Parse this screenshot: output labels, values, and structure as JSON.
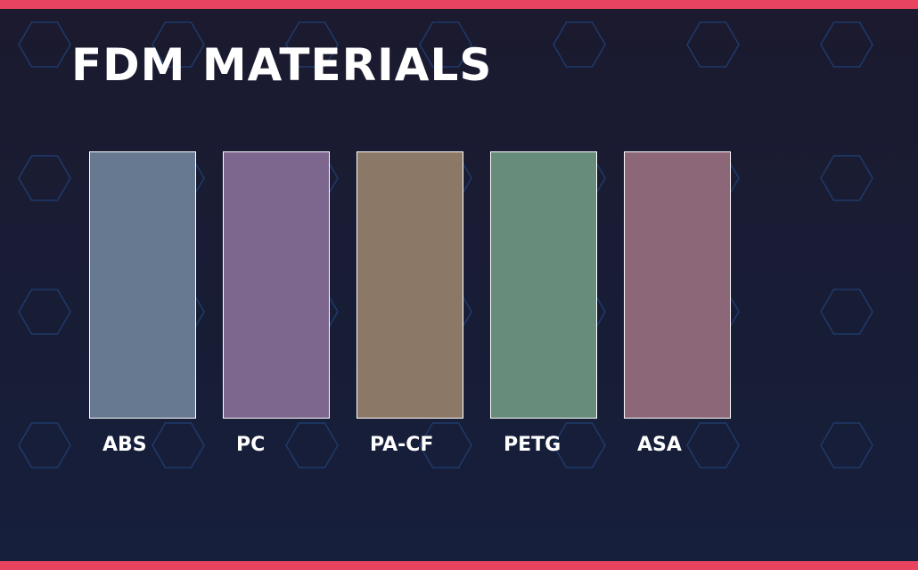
{
  "title": "FDM MATERIALS",
  "accent_color": "#e8445f",
  "hex_pattern_color": "#1e3a6a",
  "materials": [
    {
      "label": "ABS",
      "color": "#677891"
    },
    {
      "label": "PC",
      "color": "#7d678e"
    },
    {
      "label": "PA-CF",
      "color": "#8c7866"
    },
    {
      "label": "PETG",
      "color": "#688c7b"
    },
    {
      "label": "ASA",
      "color": "#8c6778"
    }
  ]
}
